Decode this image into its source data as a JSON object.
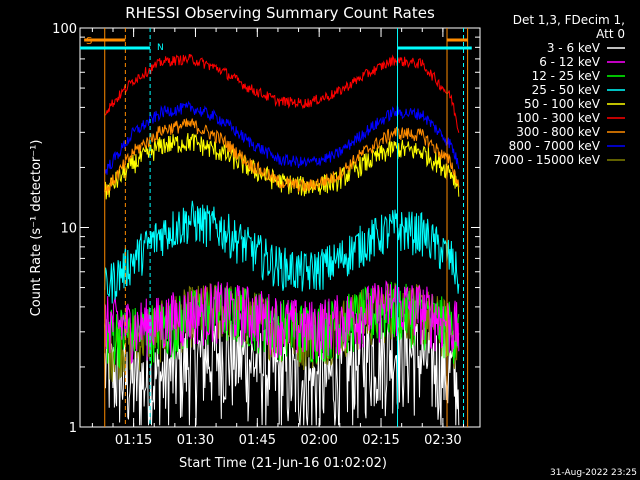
{
  "chart_data": {
    "type": "line",
    "title": "RHESSI Observing Summary Count Rates",
    "xlabel": "Start Time (21-Jun-16 01:02:02)",
    "ylabel": "Count Rate (s⁻¹ detector⁻¹)",
    "ylog": true,
    "ylim": [
      1,
      100
    ],
    "xlim_minutes_after_0102": [
      0,
      97
    ],
    "x_ticks": [
      "01:15",
      "01:30",
      "01:45",
      "02:00",
      "02:15",
      "02:30"
    ],
    "y_ticks": [
      "1",
      "10",
      "100"
    ],
    "legend_header": [
      "Det 1,3, FDecim 1,",
      "Att 0"
    ],
    "legend_position": "right",
    "series": [
      {
        "name": "3 - 6 keV",
        "color": "#ffffff",
        "values": [
          2.0,
          1.7,
          1.8,
          2.2,
          2.4,
          2.2,
          1.9,
          1.7,
          1.8,
          2.3,
          2.5,
          2.3,
          1.9,
          1.6
        ]
      },
      {
        "name": "6 - 12 keV",
        "color": "#ff00ff",
        "values": [
          3.4,
          3.2,
          3.4,
          3.8,
          4.0,
          3.8,
          3.4,
          3.2,
          3.4,
          3.8,
          4.2,
          3.9,
          3.3,
          3.1
        ]
      },
      {
        "name": "12 - 25 keV",
        "color": "#00ff00",
        "values": [
          3.0,
          3.0,
          3.2,
          3.6,
          3.9,
          3.7,
          3.3,
          3.1,
          3.3,
          3.7,
          4.0,
          3.7,
          3.2,
          3.0
        ]
      },
      {
        "name": "25 - 50 keV",
        "color": "#00ffff",
        "values": [
          5.0,
          7.0,
          9.5,
          11.0,
          10.0,
          8.0,
          6.5,
          6.0,
          6.8,
          8.5,
          10.0,
          9.5,
          7.0,
          5.5
        ]
      },
      {
        "name": "50 - 100 keV",
        "color": "#ffff00",
        "values": [
          15,
          21,
          26,
          27,
          24,
          20,
          17,
          16,
          17,
          21,
          25,
          24,
          19,
          16
        ]
      },
      {
        "name": "100 - 300 keV",
        "color": "#ff0000",
        "values": [
          38,
          55,
          68,
          70,
          62,
          50,
          43,
          42,
          47,
          58,
          69,
          66,
          45,
          30
        ]
      },
      {
        "name": "300 - 800 keV",
        "color": "#ff8c00",
        "values": [
          15,
          24,
          31,
          33,
          28,
          21,
          17,
          16,
          18,
          24,
          30,
          29,
          21,
          16
        ]
      },
      {
        "name": "800 - 7000 keV",
        "color": "#0000ff",
        "values": [
          19,
          30,
          38,
          40,
          35,
          27,
          22,
          21,
          23,
          30,
          38,
          37,
          26,
          20
        ]
      },
      {
        "name": "7000 - 15000 keV",
        "color": "#808000",
        "values": [
          2.5,
          2.8,
          3.2,
          3.8,
          4.0,
          3.7,
          3.2,
          2.9,
          3.2,
          3.7,
          4.1,
          3.8,
          3.1,
          2.6
        ]
      }
    ],
    "sample_times": [
      "01:08",
      "01:15",
      "01:22",
      "01:29",
      "01:36",
      "01:43",
      "01:50",
      "01:57",
      "02:04",
      "02:11",
      "02:18",
      "02:25",
      "02:32",
      "02:34"
    ],
    "flags": [
      {
        "label": "S",
        "color": "#ff8c00"
      },
      {
        "label": "N",
        "color": "#00ffff"
      }
    ]
  },
  "footer": {
    "timestamp": "31-Aug-2022 23:25"
  }
}
